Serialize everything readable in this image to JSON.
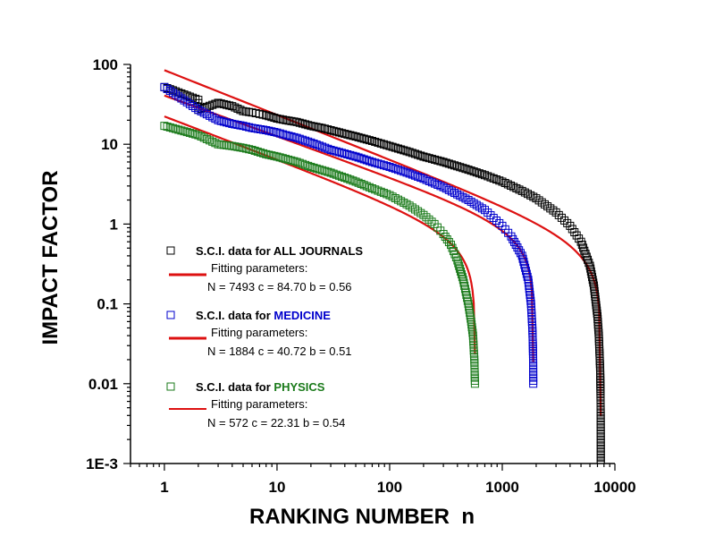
{
  "chart_data": {
    "type": "scatter",
    "xlabel": "RANKING NUMBER  n",
    "ylabel": "IMPACT FACTOR",
    "x_scale": "log",
    "y_scale": "log",
    "xlim": [
      0.5,
      10000
    ],
    "ylim": [
      0.001,
      100
    ],
    "x_ticks": [
      1,
      10,
      100,
      1000,
      10000
    ],
    "x_tick_labels": [
      "1",
      "10",
      "100",
      "1000",
      "10000"
    ],
    "y_ticks": [
      0.001,
      0.01,
      0.1,
      1,
      10,
      100
    ],
    "y_tick_labels": [
      "1E-3",
      "0.01",
      "0.1",
      "1",
      "10",
      "100"
    ],
    "grid": false,
    "legend_position": "bottom-left",
    "series": [
      {
        "name": "S.C.I. data for ALL JOURNALS",
        "name_prefix": "S.C.I. data for ",
        "name_highlight": "ALL JOURNALS",
        "color": "#000000",
        "fit_label": "Fitting parameters:",
        "fit_params_text": "N = 7493  c = 84.70  b = 0.56",
        "fit": {
          "N": 7493,
          "c": 84.7,
          "b": 0.56
        },
        "points": [
          [
            1,
            52
          ],
          [
            2,
            36
          ],
          [
            2,
            27
          ],
          [
            3,
            33
          ],
          [
            4,
            30
          ],
          [
            5,
            26
          ],
          [
            6,
            25
          ],
          [
            7,
            24
          ],
          [
            8,
            23
          ],
          [
            10,
            21
          ],
          [
            12,
            20
          ],
          [
            15,
            19
          ],
          [
            20,
            17
          ],
          [
            25,
            16
          ],
          [
            30,
            15
          ],
          [
            40,
            13.5
          ],
          [
            50,
            12.5
          ],
          [
            70,
            11
          ],
          [
            100,
            9.5
          ],
          [
            150,
            8
          ],
          [
            200,
            7
          ],
          [
            300,
            6
          ],
          [
            500,
            4.8
          ],
          [
            700,
            4.1
          ],
          [
            1000,
            3.4
          ],
          [
            1500,
            2.6
          ],
          [
            2000,
            2.1
          ],
          [
            3000,
            1.4
          ],
          [
            4000,
            0.95
          ],
          [
            5000,
            0.6
          ],
          [
            6000,
            0.3
          ],
          [
            6500,
            0.17
          ],
          [
            7000,
            0.07
          ],
          [
            7200,
            0.04
          ],
          [
            7400,
            0.015
          ],
          [
            7450,
            0.008
          ],
          [
            7480,
            0.004
          ],
          [
            7490,
            0.002
          ],
          [
            7493,
            0.001
          ]
        ]
      },
      {
        "name": "S.C.I. data for MEDICINE",
        "name_prefix": "S.C.I. data for ",
        "name_highlight": "MEDICINE",
        "color": "#0000cc",
        "fit_label": "Fitting parameters:",
        "fit_params_text": "N = 1884  c = 40.72  b = 0.51",
        "fit": {
          "N": 1884,
          "c": 40.72,
          "b": 0.51
        },
        "points": [
          [
            1,
            52
          ],
          [
            2,
            27
          ],
          [
            3,
            20
          ],
          [
            4,
            18
          ],
          [
            5,
            17
          ],
          [
            6,
            16
          ],
          [
            8,
            15
          ],
          [
            10,
            14
          ],
          [
            12,
            13
          ],
          [
            15,
            12
          ],
          [
            20,
            10.5
          ],
          [
            30,
            8.5
          ],
          [
            50,
            7
          ],
          [
            70,
            6
          ],
          [
            100,
            5.2
          ],
          [
            150,
            4.3
          ],
          [
            200,
            3.7
          ],
          [
            300,
            2.9
          ],
          [
            500,
            2
          ],
          [
            700,
            1.5
          ],
          [
            1000,
            0.95
          ],
          [
            1200,
            0.7
          ],
          [
            1500,
            0.4
          ],
          [
            1700,
            0.2
          ],
          [
            1800,
            0.1
          ],
          [
            1850,
            0.05
          ],
          [
            1870,
            0.03
          ],
          [
            1880,
            0.02
          ],
          [
            1884,
            0.01
          ]
        ]
      },
      {
        "name": "S.C.I. data for PHYSICS",
        "name_prefix": "S.C.I. data for ",
        "name_highlight": "PHYSICS",
        "color": "#1a7a1a",
        "fit_label": "Fitting parameters:",
        "fit_params_text": "N = 572  c = 22.31  b = 0.54",
        "fit": {
          "N": 572,
          "c": 22.31,
          "b": 0.54
        },
        "points": [
          [
            1,
            17
          ],
          [
            2,
            13
          ],
          [
            3,
            10
          ],
          [
            4,
            9.5
          ],
          [
            5,
            9
          ],
          [
            6,
            8.5
          ],
          [
            8,
            7.5
          ],
          [
            10,
            7
          ],
          [
            15,
            6
          ],
          [
            20,
            5.2
          ],
          [
            30,
            4.4
          ],
          [
            50,
            3.4
          ],
          [
            70,
            2.8
          ],
          [
            100,
            2.3
          ],
          [
            150,
            1.7
          ],
          [
            200,
            1.3
          ],
          [
            250,
            1
          ],
          [
            300,
            0.75
          ],
          [
            350,
            0.55
          ],
          [
            400,
            0.35
          ],
          [
            450,
            0.2
          ],
          [
            500,
            0.1
          ],
          [
            530,
            0.06
          ],
          [
            550,
            0.04
          ],
          [
            565,
            0.02
          ],
          [
            572,
            0.01
          ]
        ]
      }
    ]
  }
}
